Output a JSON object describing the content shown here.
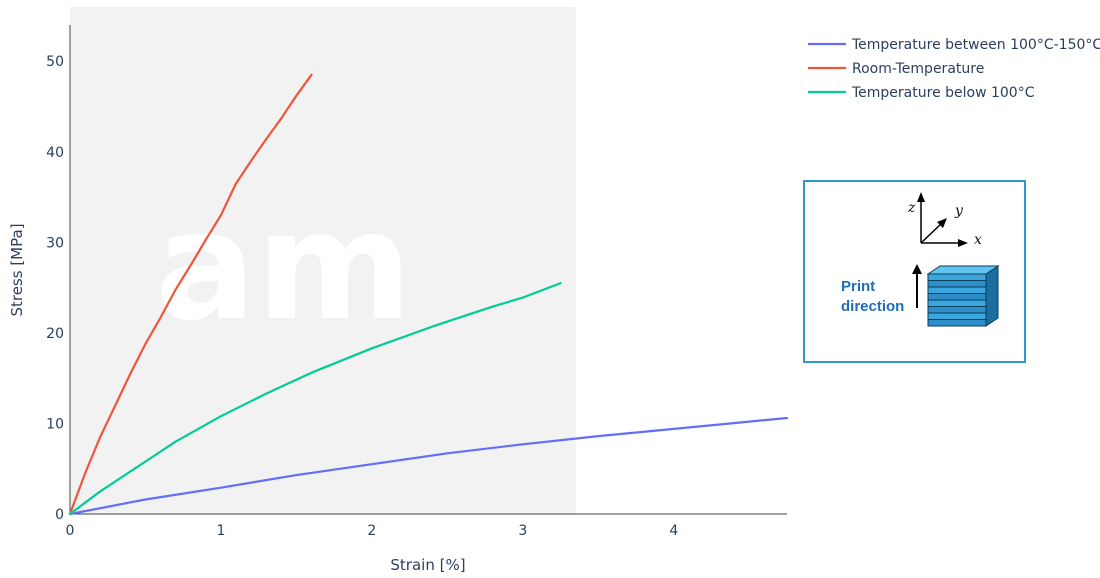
{
  "chart_data": {
    "type": "line",
    "xlabel": "Strain [%]",
    "ylabel": "Stress [MPa]",
    "xlim": [
      0,
      4.75
    ],
    "ylim": [
      0,
      54
    ],
    "x_ticks": [
      "0",
      "1",
      "2",
      "3",
      "4"
    ],
    "y_ticks": [
      "0",
      "10",
      "20",
      "30",
      "40",
      "50"
    ],
    "shaded_region_x": [
      0,
      3.35
    ],
    "grid": false,
    "legend_position": "top-right",
    "series": [
      {
        "name": "Temperature between 100°C-150°C",
        "color": "#636efa",
        "points": [
          [
            0,
            0
          ],
          [
            0.5,
            1.6
          ],
          [
            1,
            2.9
          ],
          [
            1.5,
            4.3
          ],
          [
            2,
            5.5
          ],
          [
            2.5,
            6.7
          ],
          [
            3,
            7.7
          ],
          [
            3.5,
            8.6
          ],
          [
            4,
            9.4
          ],
          [
            4.5,
            10.2
          ],
          [
            4.75,
            10.6
          ]
        ]
      },
      {
        "name": "Room-Temperature",
        "color": "#ef553b",
        "points": [
          [
            0,
            0
          ],
          [
            0.1,
            4.5
          ],
          [
            0.2,
            8.5
          ],
          [
            0.3,
            12
          ],
          [
            0.4,
            15.5
          ],
          [
            0.5,
            18.8
          ],
          [
            0.6,
            21.7
          ],
          [
            0.7,
            24.8
          ],
          [
            0.8,
            27.5
          ],
          [
            0.9,
            30.3
          ],
          [
            1.0,
            33
          ],
          [
            1.1,
            36.5
          ],
          [
            1.2,
            39
          ],
          [
            1.3,
            41.4
          ],
          [
            1.4,
            43.7
          ],
          [
            1.5,
            46.2
          ],
          [
            1.6,
            48.5
          ]
        ]
      },
      {
        "name": "Temperature below 100°C",
        "color": "#00cc96",
        "points": [
          [
            0,
            0
          ],
          [
            0.2,
            2.5
          ],
          [
            0.5,
            5.8
          ],
          [
            0.7,
            8
          ],
          [
            1.0,
            10.8
          ],
          [
            1.3,
            13.3
          ],
          [
            1.6,
            15.6
          ],
          [
            2.0,
            18.3
          ],
          [
            2.4,
            20.7
          ],
          [
            2.8,
            22.9
          ],
          [
            3.0,
            23.9
          ],
          [
            3.25,
            25.5
          ]
        ]
      }
    ]
  },
  "watermark": {
    "text": "am"
  },
  "inset": {
    "axis_z": "z",
    "axis_y": "y",
    "axis_x": "x",
    "label_line1": "Print",
    "label_line2": "direction"
  }
}
